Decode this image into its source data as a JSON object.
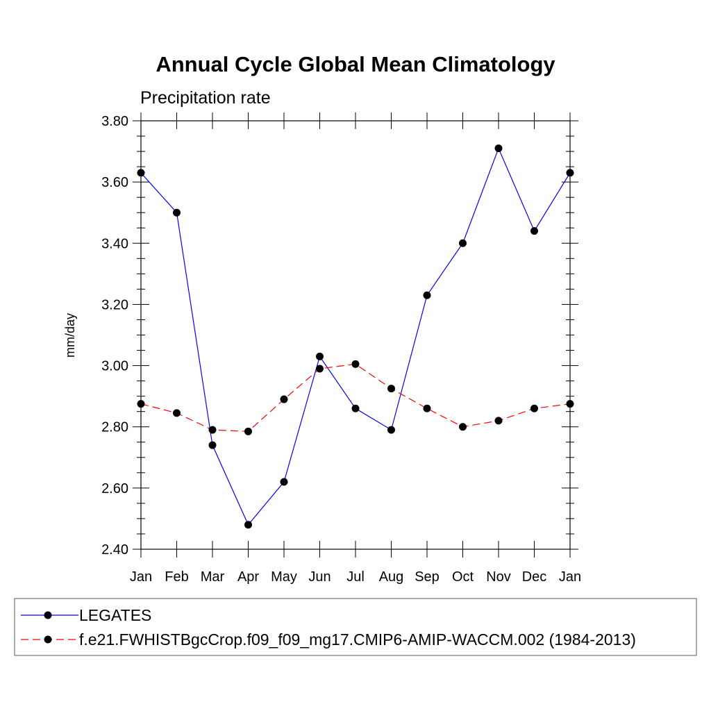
{
  "chart_data": {
    "type": "line",
    "title": "Annual Cycle Global Mean Climatology",
    "subtitle": "Precipitation rate",
    "xlabel": "",
    "ylabel": "mm/day",
    "ylim": [
      2.4,
      3.8
    ],
    "yticks": [
      "2.40",
      "2.60",
      "2.80",
      "3.00",
      "3.20",
      "3.40",
      "3.60",
      "3.80"
    ],
    "categories": [
      "Jan",
      "Feb",
      "Mar",
      "Apr",
      "May",
      "Jun",
      "Jul",
      "Aug",
      "Sep",
      "Oct",
      "Nov",
      "Dec",
      "Jan"
    ],
    "grid": false,
    "legend_position": "bottom",
    "series": [
      {
        "name": "LEGATES",
        "color": "#0000ff",
        "style": "solid",
        "values": [
          3.63,
          3.5,
          2.74,
          2.48,
          2.62,
          3.03,
          2.86,
          2.79,
          3.23,
          3.4,
          3.71,
          3.44,
          3.63
        ]
      },
      {
        "name": "f.e21.FWHISTBgcCrop.f09_f09_mg17.CMIP6-AMIP-WACCM.002 (1984-2013)",
        "color": "#ff0000",
        "style": "dashed",
        "values": [
          2.875,
          2.845,
          2.79,
          2.785,
          2.89,
          2.99,
          3.005,
          2.925,
          2.86,
          2.8,
          2.82,
          2.86,
          2.875
        ]
      }
    ]
  }
}
